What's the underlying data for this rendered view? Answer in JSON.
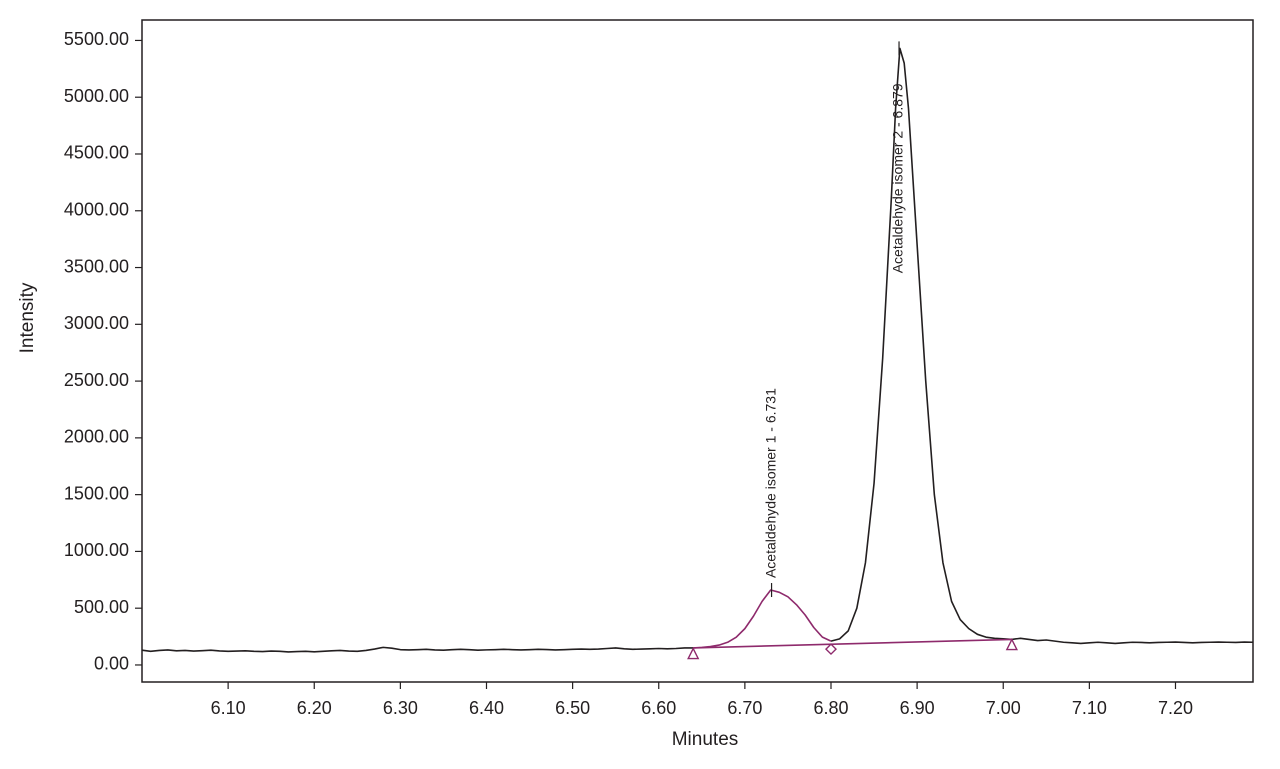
{
  "chart_data": {
    "type": "line",
    "x_label": "Minutes",
    "y_label": "Intensity",
    "xlim": [
      6.0,
      7.29
    ],
    "ylim": [
      -150,
      5680
    ],
    "xticks": [
      {
        "value": 6.1,
        "label": "6.10"
      },
      {
        "value": 6.2,
        "label": "6.20"
      },
      {
        "value": 6.3,
        "label": "6.30"
      },
      {
        "value": 6.4,
        "label": "6.40"
      },
      {
        "value": 6.5,
        "label": "6.50"
      },
      {
        "value": 6.6,
        "label": "6.60"
      },
      {
        "value": 6.7,
        "label": "6.70"
      },
      {
        "value": 6.8,
        "label": "6.80"
      },
      {
        "value": 6.9,
        "label": "6.90"
      },
      {
        "value": 7.0,
        "label": "7.00"
      },
      {
        "value": 7.1,
        "label": "7.10"
      },
      {
        "value": 7.2,
        "label": "7.20"
      }
    ],
    "yticks": [
      {
        "value": 0,
        "label": "0.00"
      },
      {
        "value": 500,
        "label": "500.00"
      },
      {
        "value": 1000,
        "label": "1000.00"
      },
      {
        "value": 1500,
        "label": "1500.00"
      },
      {
        "value": 2000,
        "label": "2000.00"
      },
      {
        "value": 2500,
        "label": "2500.00"
      },
      {
        "value": 3000,
        "label": "3000.00"
      },
      {
        "value": 3500,
        "label": "3500.00"
      },
      {
        "value": 4000,
        "label": "4000.00"
      },
      {
        "value": 4500,
        "label": "4500.00"
      },
      {
        "value": 5000,
        "label": "5000.00"
      },
      {
        "value": 5500,
        "label": "5500.00"
      }
    ],
    "grid": false,
    "series": [
      {
        "color": "#231f20",
        "x": [
          6.0,
          6.01,
          6.02,
          6.03,
          6.04,
          6.05,
          6.06,
          6.07,
          6.08,
          6.09,
          6.1,
          6.11,
          6.12,
          6.13,
          6.14,
          6.15,
          6.16,
          6.17,
          6.18,
          6.19,
          6.2,
          6.21,
          6.22,
          6.23,
          6.24,
          6.25,
          6.26,
          6.27,
          6.28,
          6.29,
          6.3,
          6.31,
          6.32,
          6.33,
          6.34,
          6.35,
          6.36,
          6.37,
          6.38,
          6.39,
          6.4,
          6.41,
          6.42,
          6.43,
          6.44,
          6.45,
          6.46,
          6.47,
          6.48,
          6.49,
          6.5,
          6.51,
          6.52,
          6.53,
          6.54,
          6.55,
          6.56,
          6.57,
          6.58,
          6.59,
          6.6,
          6.61,
          6.62,
          6.63,
          6.64,
          6.72,
          6.8,
          6.81,
          6.82,
          6.83,
          6.84,
          6.85,
          6.86,
          6.87,
          6.875,
          6.88,
          6.885,
          6.89,
          6.9,
          6.91,
          6.92,
          6.93,
          6.94,
          6.95,
          6.96,
          6.97,
          6.98,
          6.99,
          7.0,
          7.01,
          7.02,
          7.03,
          7.04,
          7.05,
          7.06,
          7.07,
          7.08,
          7.09,
          7.1,
          7.11,
          7.12,
          7.13,
          7.14,
          7.15,
          7.16,
          7.17,
          7.18,
          7.19,
          7.2,
          7.21,
          7.22,
          7.23,
          7.24,
          7.25,
          7.26,
          7.27,
          7.28,
          7.29
        ],
        "values": [
          130,
          120,
          128,
          132,
          125,
          128,
          122,
          126,
          130,
          124,
          120,
          122,
          125,
          120,
          118,
          122,
          120,
          115,
          118,
          120,
          116,
          120,
          125,
          128,
          122,
          120,
          128,
          140,
          155,
          148,
          135,
          132,
          135,
          138,
          132,
          130,
          135,
          138,
          135,
          130,
          133,
          135,
          138,
          135,
          132,
          135,
          138,
          136,
          132,
          135,
          138,
          140,
          138,
          140,
          145,
          150,
          142,
          138,
          140,
          142,
          145,
          142,
          145,
          150,
          150,
          null,
          210,
          230,
          300,
          500,
          900,
          1600,
          2700,
          4100,
          4900,
          5430,
          5300,
          4900,
          3700,
          2500,
          1500,
          900,
          560,
          400,
          320,
          270,
          245,
          235,
          230,
          225,
          235,
          225,
          215,
          220,
          210,
          200,
          195,
          190,
          195,
          200,
          195,
          190,
          195,
          200,
          198,
          195,
          198,
          200,
          202,
          198,
          195,
          198,
          200,
          202,
          200,
          198,
          202,
          200
        ]
      },
      {
        "color": "#8e2a6c",
        "x": [
          6.64,
          6.65,
          6.66,
          6.67,
          6.68,
          6.69,
          6.7,
          6.71,
          6.72,
          6.73,
          6.74,
          6.75,
          6.76,
          6.77,
          6.78,
          6.79,
          6.8
        ],
        "values": [
          150,
          155,
          162,
          175,
          200,
          245,
          320,
          430,
          560,
          660,
          640,
          600,
          530,
          440,
          330,
          245,
          210
        ]
      },
      {
        "color": "#8e2a6c",
        "x": [
          6.64,
          7.01
        ],
        "values": [
          150,
          225
        ]
      }
    ],
    "markers": {
      "color": "#8e2a6c",
      "x": [
        6.64,
        6.8,
        7.01
      ],
      "values": [
        100,
        140,
        180
      ],
      "shapes": [
        "triangle",
        "diamond",
        "triangle"
      ]
    },
    "annotations": [
      {
        "text": "Acetaldehyde isomer 1 - 6.731",
        "x": 6.731,
        "y": 660
      },
      {
        "text": "Acetaldehyde isomer 2 - 6.879",
        "x": 6.879,
        "y": 5430
      }
    ]
  }
}
